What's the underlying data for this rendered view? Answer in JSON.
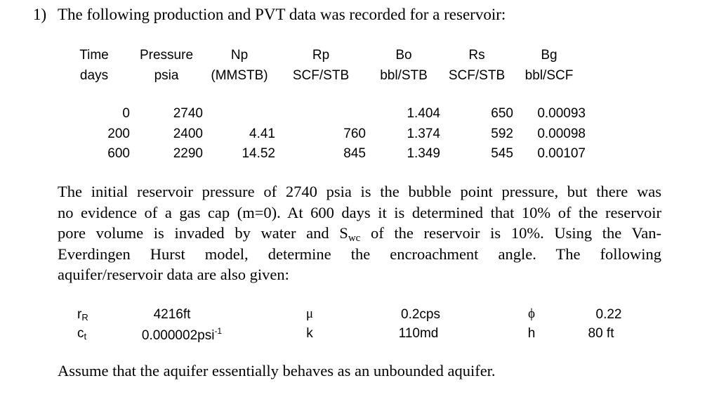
{
  "question": {
    "number": "1)",
    "title": "The following production and PVT data was recorded for a reservoir:"
  },
  "table": {
    "headers": [
      {
        "name": "Time",
        "unit": "days"
      },
      {
        "name": "Pressure",
        "unit": "psia"
      },
      {
        "name": "Np",
        "unit": "(MMSTB)"
      },
      {
        "name": "Rp",
        "unit": "SCF/STB"
      },
      {
        "name": "Bo",
        "unit": "bbl/STB"
      },
      {
        "name": "Rs",
        "unit": "SCF/STB"
      },
      {
        "name": "Bg",
        "unit": "bbl/SCF"
      }
    ],
    "rows": [
      {
        "time": "0",
        "pressure": "2740",
        "np": "",
        "rp": "",
        "bo": "1.404",
        "rs": "650",
        "bg": "0.00093"
      },
      {
        "time": "200",
        "pressure": "2400",
        "np": "4.41",
        "rp": "760",
        "bo": "1.374",
        "rs": "592",
        "bg": "0.00098"
      },
      {
        "time": "600",
        "pressure": "2290",
        "np": "14.52",
        "rp": "845",
        "bo": "1.349",
        "rs": "545",
        "bg": "0.00107"
      }
    ]
  },
  "paragraph": {
    "line1": "The initial reservoir pressure of 2740 psia is the bubble point pressure, but there was",
    "line2": "no evidence of a gas cap (m=0). At 600 days it is determined that 10% of the reservoir",
    "line3_pre": "pore volume is invaded by water and S",
    "line3_sub": "wc",
    "line3_post": " of the reservoir is 10%. Using the Van-",
    "line4": "Everdingen Hurst model, determine the encroachment angle. The following",
    "line5": "aquifer/reservoir data are also given:"
  },
  "aquifer": {
    "r_main": "r",
    "r_sub": "R",
    "r_value": "4216ft",
    "mu_symbol": "μ",
    "mu_value": "0.2cps",
    "phi_symbol": "ϕ",
    "phi_value": "0.22",
    "c_main": "c",
    "c_sub": "t",
    "c_value": "0.000002psi",
    "c_value_sup": "-1",
    "k_symbol": "k",
    "k_value": "110md",
    "h_symbol": "h",
    "h_value": "80 ft"
  },
  "footer": "Assume that the aquifer essentially behaves as an unbounded aquifer."
}
